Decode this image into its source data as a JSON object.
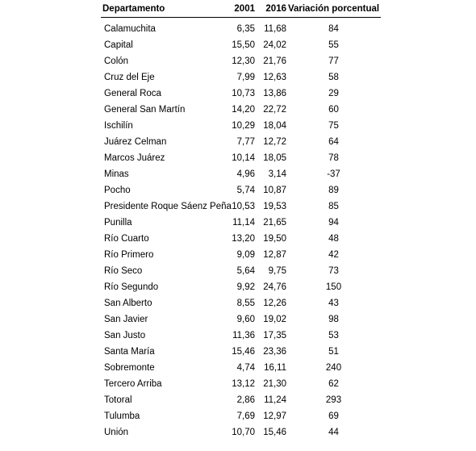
{
  "headers": {
    "departamento": "Departamento",
    "y2001": "2001",
    "y2016": "2016",
    "variacion": "Variación porcentual"
  },
  "rows": [
    {
      "dep": "Calamuchita",
      "v2001": "6,35",
      "v2016": "11,68",
      "var": "84"
    },
    {
      "dep": "Capital",
      "v2001": "15,50",
      "v2016": "24,02",
      "var": "55"
    },
    {
      "dep": "Colón",
      "v2001": "12,30",
      "v2016": "21,76",
      "var": "77"
    },
    {
      "dep": "Cruz del Eje",
      "v2001": "7,99",
      "v2016": "12,63",
      "var": "58"
    },
    {
      "dep": "General Roca",
      "v2001": "10,73",
      "v2016": "13,86",
      "var": "29"
    },
    {
      "dep": "General San Martín",
      "v2001": "14,20",
      "v2016": "22,72",
      "var": "60"
    },
    {
      "dep": "Ischilín",
      "v2001": "10,29",
      "v2016": "18,04",
      "var": "75"
    },
    {
      "dep": "Juárez Celman",
      "v2001": "7,77",
      "v2016": "12,72",
      "var": "64"
    },
    {
      "dep": "Marcos Juárez",
      "v2001": "10,14",
      "v2016": "18,05",
      "var": "78"
    },
    {
      "dep": "Minas",
      "v2001": "4,96",
      "v2016": "3,14",
      "var": "-37"
    },
    {
      "dep": "Pocho",
      "v2001": "5,74",
      "v2016": "10,87",
      "var": "89"
    },
    {
      "dep": "Presidente Roque Sáenz Peña",
      "v2001": "10,53",
      "v2016": "19,53",
      "var": "85"
    },
    {
      "dep": "Punilla",
      "v2001": "11,14",
      "v2016": "21,65",
      "var": "94"
    },
    {
      "dep": "Río Cuarto",
      "v2001": "13,20",
      "v2016": "19,50",
      "var": "48"
    },
    {
      "dep": "Río Primero",
      "v2001": "9,09",
      "v2016": "12,87",
      "var": "42"
    },
    {
      "dep": "Río Seco",
      "v2001": "5,64",
      "v2016": "9,75",
      "var": "73"
    },
    {
      "dep": "Río Segundo",
      "v2001": "9,92",
      "v2016": "24,76",
      "var": "150"
    },
    {
      "dep": "San Alberto",
      "v2001": "8,55",
      "v2016": "12,26",
      "var": "43"
    },
    {
      "dep": "San Javier",
      "v2001": "9,60",
      "v2016": "19,02",
      "var": "98"
    },
    {
      "dep": "San Justo",
      "v2001": "11,36",
      "v2016": "17,35",
      "var": "53"
    },
    {
      "dep": "Santa María",
      "v2001": "15,46",
      "v2016": "23,36",
      "var": "51"
    },
    {
      "dep": "Sobremonte",
      "v2001": "4,74",
      "v2016": "16,11",
      "var": "240"
    },
    {
      "dep": "Tercero Arriba",
      "v2001": "13,12",
      "v2016": "21,30",
      "var": "62"
    },
    {
      "dep": "Totoral",
      "v2001": "2,86",
      "v2016": "11,24",
      "var": "293"
    },
    {
      "dep": "Tulumba",
      "v2001": "7,69",
      "v2016": "12,97",
      "var": "69"
    },
    {
      "dep": "Unión",
      "v2001": "10,70",
      "v2016": "15,46",
      "var": "44"
    }
  ]
}
